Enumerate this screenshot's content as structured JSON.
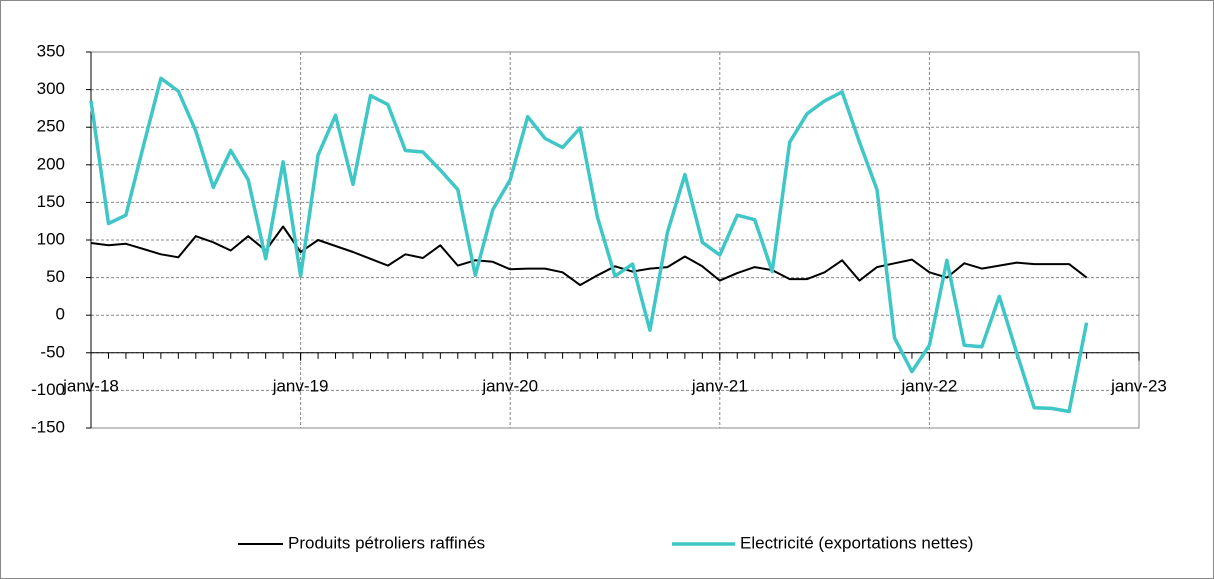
{
  "chart_data": {
    "type": "line",
    "x": [
      "2018-01",
      "2018-02",
      "2018-03",
      "2018-04",
      "2018-05",
      "2018-06",
      "2018-07",
      "2018-08",
      "2018-09",
      "2018-10",
      "2018-11",
      "2018-12",
      "2019-01",
      "2019-02",
      "2019-03",
      "2019-04",
      "2019-05",
      "2019-06",
      "2019-07",
      "2019-08",
      "2019-09",
      "2019-10",
      "2019-11",
      "2019-12",
      "2020-01",
      "2020-02",
      "2020-03",
      "2020-04",
      "2020-05",
      "2020-06",
      "2020-07",
      "2020-08",
      "2020-09",
      "2020-10",
      "2020-11",
      "2020-12",
      "2021-01",
      "2021-02",
      "2021-03",
      "2021-04",
      "2021-05",
      "2021-06",
      "2021-07",
      "2021-08",
      "2021-09",
      "2021-10",
      "2021-11",
      "2021-12",
      "2022-01",
      "2022-02",
      "2022-03",
      "2022-04",
      "2022-05",
      "2022-06",
      "2022-07",
      "2022-08",
      "2022-09",
      "2022-10"
    ],
    "series": [
      {
        "name": "Produits pétroliers raffinés",
        "color": "#000000",
        "values": [
          96,
          93,
          95,
          88,
          81,
          77,
          105,
          97,
          86,
          105,
          86,
          118,
          84,
          100,
          92,
          84,
          75,
          66,
          81,
          76,
          93,
          66,
          73,
          71,
          61,
          62,
          62,
          57,
          40,
          53,
          65,
          58,
          62,
          64,
          78,
          65,
          46,
          56,
          64,
          60,
          48,
          48,
          57,
          73,
          46,
          64,
          69,
          74,
          57,
          50,
          69,
          62,
          66,
          70,
          68,
          68,
          68,
          50
        ]
      },
      {
        "name": "Electricité (exportations nettes)",
        "color": "#3fc6c6",
        "values": [
          285,
          122,
          133,
          225,
          315,
          298,
          245,
          170,
          219,
          180,
          75,
          204,
          52,
          213,
          266,
          174,
          292,
          280,
          219,
          217,
          193,
          167,
          53,
          140,
          180,
          264,
          235,
          223,
          249,
          130,
          52,
          68,
          -20,
          110,
          187,
          97,
          80,
          133,
          127,
          58,
          230,
          268,
          285,
          297,
          230,
          167,
          -30,
          -75,
          -40,
          73,
          -40,
          -42,
          25,
          -50,
          -123,
          -124,
          -128,
          -10
        ]
      }
    ],
    "ylim": [
      -150,
      350
    ],
    "yticks": [
      -150,
      -100,
      -50,
      0,
      50,
      100,
      150,
      200,
      250,
      300,
      350
    ],
    "xlim": [
      "2018-01",
      "2023-01"
    ],
    "xticks": [
      {
        "value": "2018-01",
        "label": "janv-18"
      },
      {
        "value": "2019-01",
        "label": "janv-19"
      },
      {
        "value": "2020-01",
        "label": "janv-20"
      },
      {
        "value": "2021-01",
        "label": "janv-21"
      },
      {
        "value": "2022-01",
        "label": "janv-22"
      },
      {
        "value": "2023-01",
        "label": "janv-23"
      }
    ],
    "x_axis_crosses": -50,
    "grid": true,
    "legend": "bottom"
  }
}
